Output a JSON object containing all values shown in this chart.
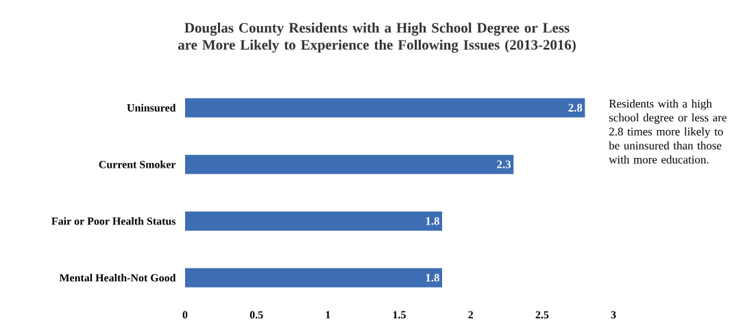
{
  "chart_data": {
    "type": "bar",
    "orientation": "horizontal",
    "title": "Douglas County Residents with a High School Degree or Less are More Likely to Experience the Following Issues (2013-2016)",
    "categories": [
      "Uninsured",
      "Current Smoker",
      "Fair or Poor Health Status",
      "Mental Health-Not Good"
    ],
    "values": [
      2.8,
      2.3,
      1.8,
      1.8
    ],
    "color": "#3d6db3",
    "xlim": [
      0,
      3
    ],
    "xticks": [
      0,
      0.5,
      1,
      1.5,
      2,
      2.5,
      3
    ],
    "data_labels": true,
    "annotations": [
      "Residents with a high school degree or less are 2.8 times more likely to be uninsured than those with more education."
    ]
  }
}
